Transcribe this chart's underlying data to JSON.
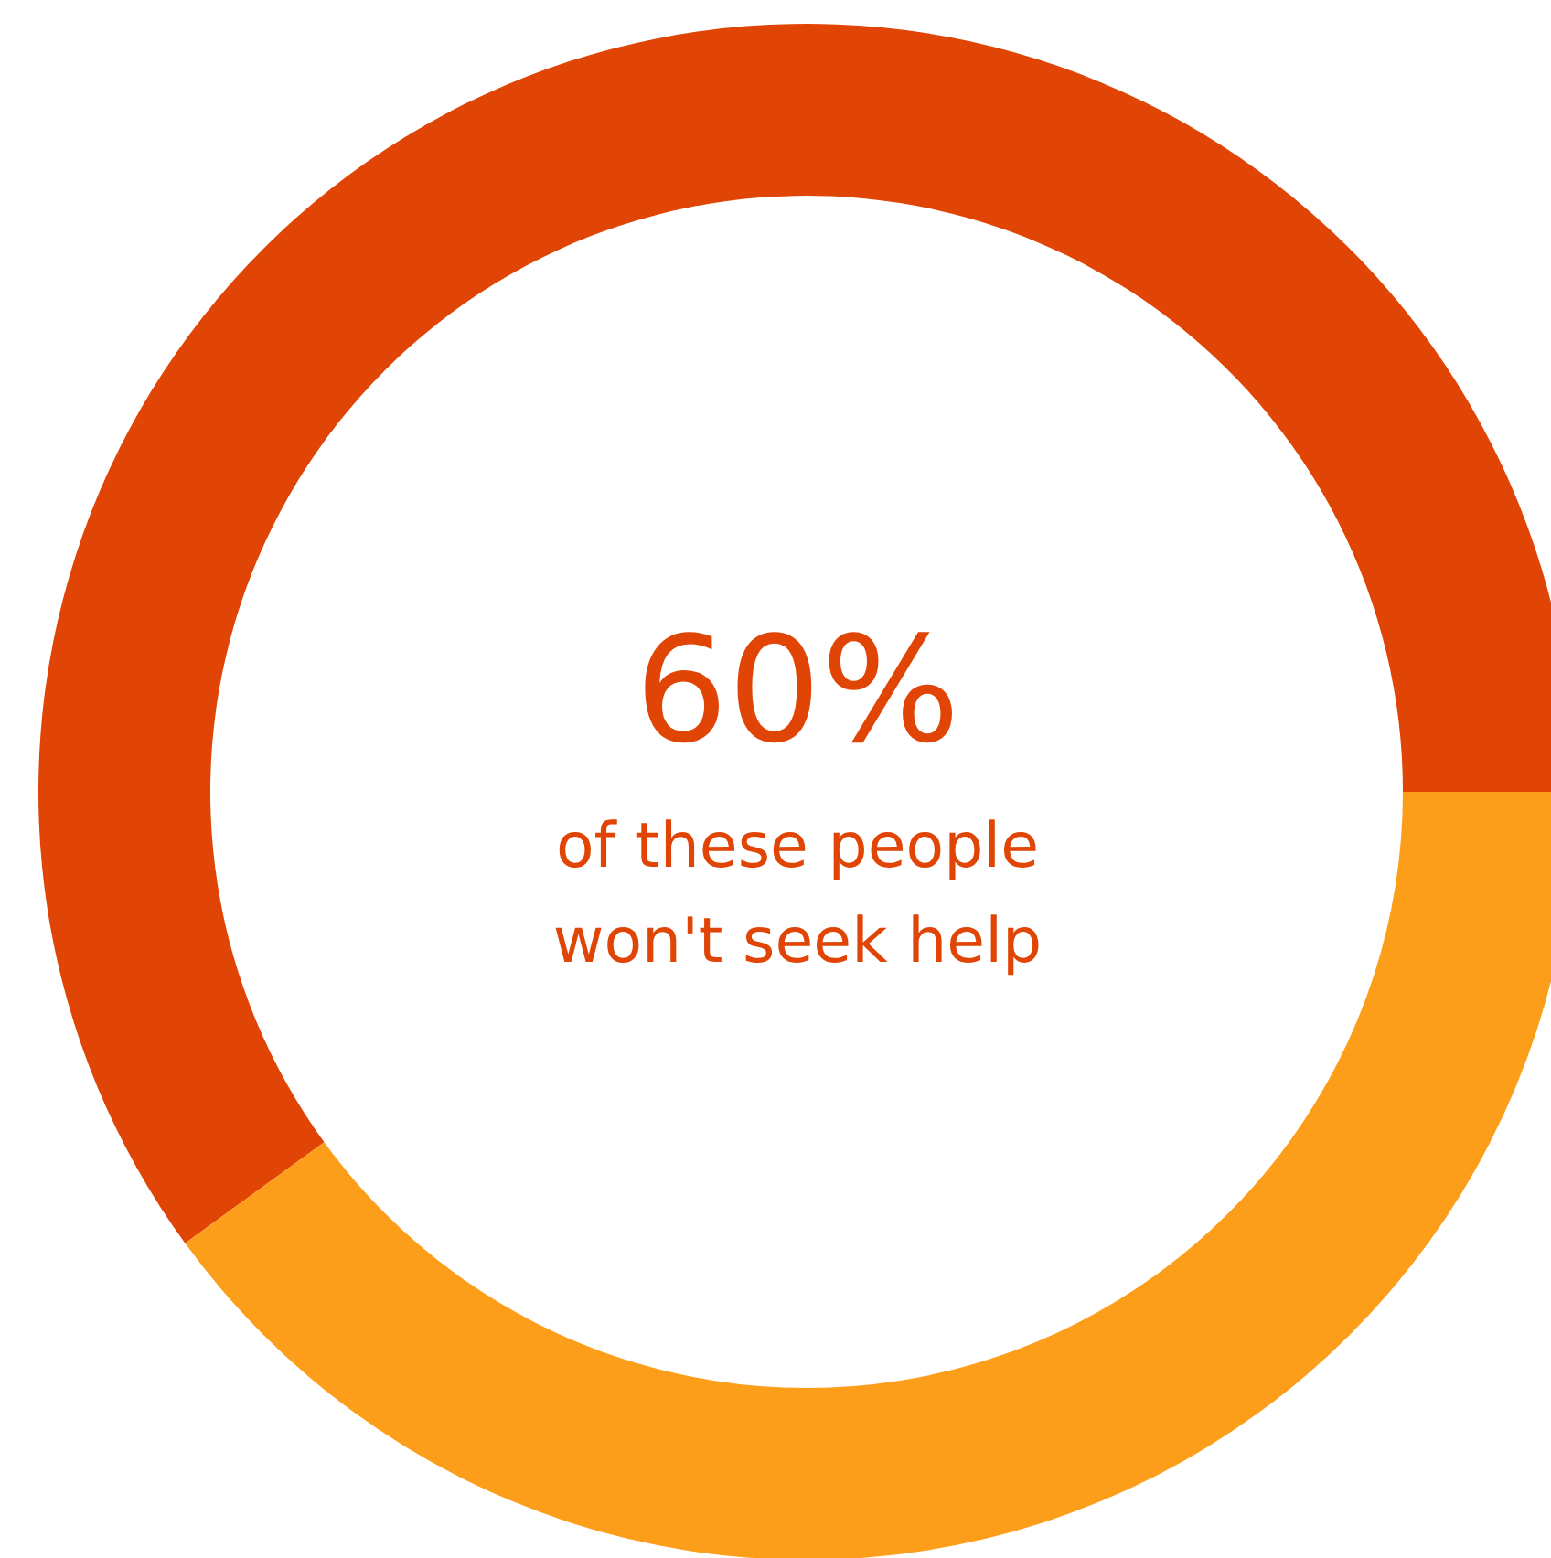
{
  "chart_data": {
    "type": "donut",
    "categories": [
      null,
      null
    ],
    "values": [
      60,
      40
    ],
    "colors": [
      "#e04506",
      "#fd9e1b"
    ],
    "annotations": [
      "60%",
      "of these people won't seek help"
    ]
  }
}
